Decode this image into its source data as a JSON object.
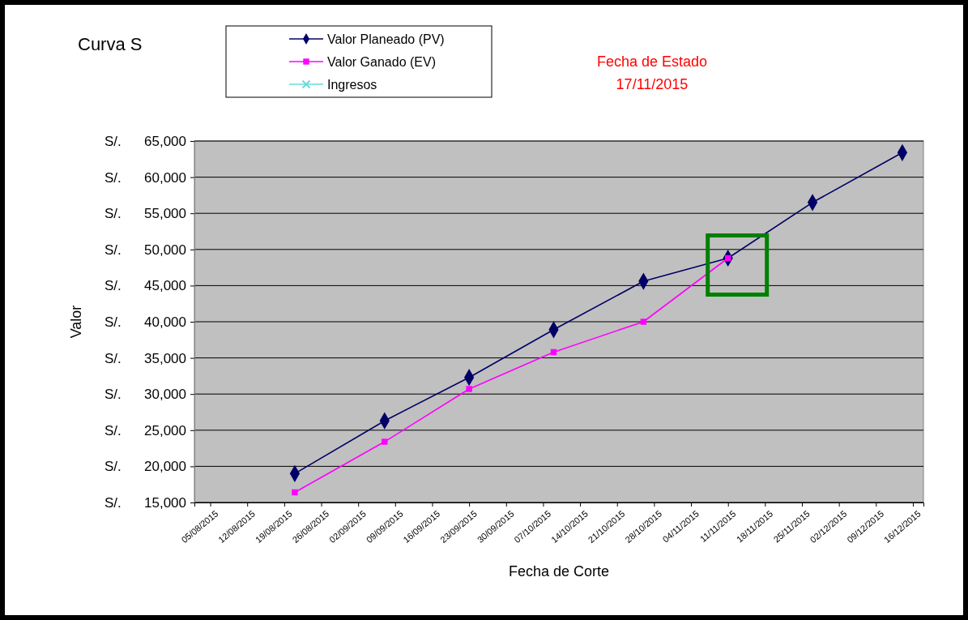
{
  "chart_data": {
    "type": "line",
    "title": "Curva S",
    "xlabel": "Fecha de Corte",
    "ylabel": "Valor",
    "annotations": [
      "Fecha de Estado",
      "17/11/2015"
    ],
    "xlim": [
      "2015-08-02",
      "2015-12-18"
    ],
    "xticks": [
      {
        "value": "2015-08-05",
        "label": "05/08/2015"
      },
      {
        "value": "2015-08-12",
        "label": "12/08/2015"
      },
      {
        "value": "2015-08-19",
        "label": "19/08/2015"
      },
      {
        "value": "2015-08-26",
        "label": "26/08/2015"
      },
      {
        "value": "2015-09-02",
        "label": "02/09/2015"
      },
      {
        "value": "2015-09-09",
        "label": "09/09/2015"
      },
      {
        "value": "2015-09-16",
        "label": "16/09/2015"
      },
      {
        "value": "2015-09-23",
        "label": "23/09/2015"
      },
      {
        "value": "2015-09-30",
        "label": "30/09/2015"
      },
      {
        "value": "2015-10-07",
        "label": "07/10/2015"
      },
      {
        "value": "2015-10-14",
        "label": "14/10/2015"
      },
      {
        "value": "2015-10-21",
        "label": "21/10/2015"
      },
      {
        "value": "2015-10-28",
        "label": "28/10/2015"
      },
      {
        "value": "2015-11-04",
        "label": "04/11/2015"
      },
      {
        "value": "2015-11-11",
        "label": "11/11/2015"
      },
      {
        "value": "2015-11-18",
        "label": "18/11/2015"
      },
      {
        "value": "2015-11-25",
        "label": "25/11/2015"
      },
      {
        "value": "2015-12-02",
        "label": "02/12/2015"
      },
      {
        "value": "2015-12-09",
        "label": "09/12/2015"
      },
      {
        "value": "2015-12-16",
        "label": "16/12/2015"
      }
    ],
    "ylim": [
      15000,
      65000
    ],
    "yticks": [
      {
        "value": 15000,
        "label": "S/.      15,000"
      },
      {
        "value": 20000,
        "label": "S/.      20,000"
      },
      {
        "value": 25000,
        "label": "S/.      25,000"
      },
      {
        "value": 30000,
        "label": "S/.      30,000"
      },
      {
        "value": 35000,
        "label": "S/.      35,000"
      },
      {
        "value": 40000,
        "label": "S/.      40,000"
      },
      {
        "value": 45000,
        "label": "S/.      45,000"
      },
      {
        "value": 50000,
        "label": "S/.      50,000"
      },
      {
        "value": 55000,
        "label": "S/.      55,000"
      },
      {
        "value": 60000,
        "label": "S/.      60,000"
      },
      {
        "value": 65000,
        "label": "S/.      65,000"
      }
    ],
    "x": [
      "2015-08-21",
      "2015-09-07",
      "2015-09-23",
      "2015-10-09",
      "2015-10-26",
      "2015-11-11",
      "2015-11-27",
      "2015-12-14"
    ],
    "grid": "y",
    "legend": "top left",
    "series": [
      {
        "name": "Valor Planeado (PV)",
        "color": "#000066",
        "marker": "diamond",
        "values": [
          19000,
          26300,
          32300,
          38900,
          45600,
          48800,
          56500,
          63400
        ]
      },
      {
        "name": "Valor Ganado (EV)",
        "color": "#ff00ff",
        "marker": "square",
        "values": [
          16400,
          23400,
          30700,
          35800,
          40000,
          48800,
          null,
          null
        ]
      },
      {
        "name": "Ingresos",
        "color": "#66dddd",
        "marker": "cross",
        "values": [
          null,
          null,
          null,
          null,
          null,
          null,
          null,
          null
        ]
      }
    ]
  }
}
